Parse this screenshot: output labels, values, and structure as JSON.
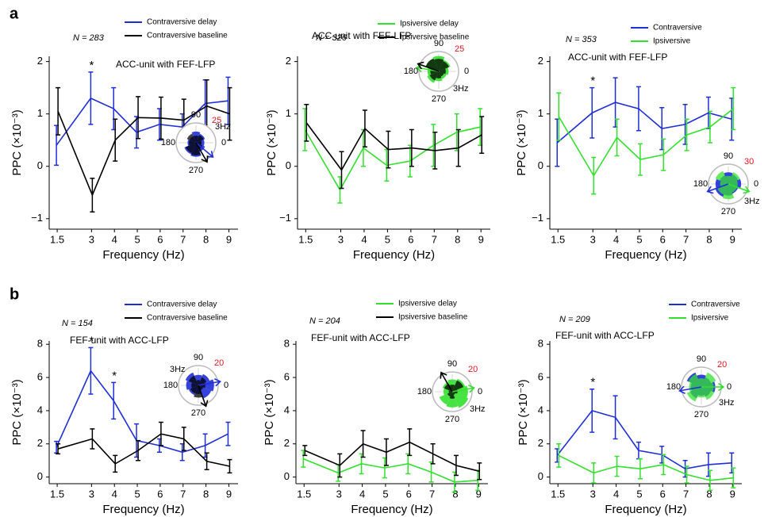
{
  "chart_data": [
    {
      "type": "line",
      "panel_label": "a",
      "n_label": "N = 283",
      "annotation": "ACC-unit with FEF-LFP",
      "x_label": "Frequency (Hz)",
      "y_label": "PPC (×10⁻³)",
      "x": [
        1.5,
        3,
        4,
        5,
        6,
        7,
        8,
        9
      ],
      "xlim": [
        1.15,
        9.4
      ],
      "xticks": [
        1.5,
        3,
        4,
        5,
        6,
        7,
        8,
        9
      ],
      "ylim": [
        -1.2,
        2.1
      ],
      "yticks": [
        {
          "value": -1,
          "label": "−1"
        },
        0,
        1,
        2
      ],
      "series": [
        {
          "name": "Contraversive delay",
          "color": "#1f2fd8",
          "values": [
            0.4,
            1.3,
            1.1,
            0.65,
            0.8,
            0.75,
            1.2,
            1.25
          ],
          "errors": [
            0.38,
            0.5,
            0.4,
            0.3,
            0.3,
            0.25,
            0.45,
            0.45
          ]
        },
        {
          "name": "Contraversive baseline",
          "color": "#000000",
          "values": [
            1.05,
            -0.55,
            0.5,
            0.93,
            0.92,
            0.88,
            1.15,
            1.0
          ],
          "errors": [
            0.45,
            0.32,
            0.4,
            0.4,
            0.4,
            0.4,
            0.5,
            0.5
          ]
        }
      ],
      "significance": [
        {
          "x": 3,
          "label": "*"
        }
      ],
      "rose": {
        "radius_label": 25,
        "angle_ticks": [
          90,
          180,
          270,
          0
        ],
        "freq_label": "3Hz",
        "series": [
          {
            "color": "#1f2fd8",
            "values": [
              12,
              14,
              16,
              10,
              12,
              18,
              20,
              14
            ],
            "arrow_angle": 320
          },
          {
            "color": "#000000",
            "values": [
              8,
              12,
              10,
              14,
              10,
              16,
              18,
              10
            ],
            "arrow_angle": 300
          }
        ]
      }
    },
    {
      "type": "line",
      "n_label": "N = 326",
      "annotation": "ACC-unit with FEF-LFP",
      "x_label": "Frequency (Hz)",
      "y_label": "PPC (×10⁻³)",
      "x": [
        1.5,
        3,
        4,
        5,
        6,
        7,
        8,
        9
      ],
      "xlim": [
        1.15,
        9.4
      ],
      "xticks": [
        1.5,
        3,
        4,
        5,
        6,
        7,
        8,
        9
      ],
      "ylim": [
        -1.2,
        2.1
      ],
      "yticks": [
        {
          "value": -1,
          "label": "−1"
        },
        0,
        1,
        2
      ],
      "series": [
        {
          "name": "Ipsiversive delay",
          "color": "#33e02e",
          "values": [
            0.7,
            -0.45,
            0.35,
            0.02,
            0.1,
            0.4,
            0.65,
            0.75
          ],
          "errors": [
            0.4,
            0.25,
            0.35,
            0.3,
            0.3,
            0.4,
            0.35,
            0.35
          ]
        },
        {
          "name": "Ipsiversive baseline",
          "color": "#000000",
          "values": [
            0.83,
            -0.07,
            0.72,
            0.32,
            0.35,
            0.3,
            0.35,
            0.6
          ],
          "errors": [
            0.35,
            0.35,
            0.35,
            0.35,
            0.35,
            0.35,
            0.35,
            0.35
          ]
        }
      ],
      "significance": [],
      "rose": {
        "radius_label": 25,
        "angle_ticks": [
          90,
          180,
          270,
          0
        ],
        "freq_label": "3Hz",
        "series": [
          {
            "color": "#33e02e",
            "values": [
              14,
              18,
              22,
              20,
              16,
              18,
              14,
              12
            ],
            "arrow_angle": 170
          },
          {
            "color": "#000000",
            "values": [
              10,
              16,
              18,
              20,
              12,
              14,
              10,
              8
            ],
            "arrow_angle": 160
          }
        ]
      }
    },
    {
      "type": "line",
      "n_label": "N = 353",
      "annotation": "ACC-unit with FEF-LFP",
      "x_label": "Frequency (Hz)",
      "y_label": "PPC (×10⁻³)",
      "x": [
        1.5,
        3,
        4,
        5,
        6,
        7,
        8,
        9
      ],
      "xlim": [
        1.15,
        9.4
      ],
      "xticks": [
        1.5,
        3,
        4,
        5,
        6,
        7,
        8,
        9
      ],
      "ylim": [
        -1.2,
        2.1
      ],
      "yticks": [
        {
          "value": -1,
          "label": "−1"
        },
        0,
        1,
        2
      ],
      "series": [
        {
          "name": "Contraversive",
          "color": "#1f2fd8",
          "values": [
            0.45,
            1.02,
            1.22,
            1.1,
            0.72,
            0.8,
            1.02,
            0.9
          ],
          "errors": [
            0.45,
            0.48,
            0.47,
            0.42,
            0.4,
            0.38,
            0.3,
            0.4
          ]
        },
        {
          "name": "Ipsiversive",
          "color": "#33e02e",
          "values": [
            0.95,
            -0.18,
            0.55,
            0.13,
            0.22,
            0.6,
            0.75,
            1.1
          ],
          "errors": [
            0.45,
            0.35,
            0.35,
            0.3,
            0.3,
            0.3,
            0.3,
            0.4
          ]
        }
      ],
      "significance": [
        {
          "x": 3,
          "label": "*"
        }
      ],
      "rose": {
        "radius_label": 30,
        "angle_ticks": [
          90,
          180,
          270,
          0
        ],
        "freq_label": "3Hz",
        "series": [
          {
            "color": "#1f2fd8",
            "values": [
              22,
              18,
              20,
              16,
              22,
              24,
              20,
              18
            ],
            "arrow_angle": 200
          },
          {
            "color": "#33e02e",
            "values": [
              16,
              22,
              14,
              24,
              14,
              20,
              26,
              16
            ],
            "arrow_angle": 340
          }
        ]
      }
    },
    {
      "type": "line",
      "panel_label": "b",
      "n_label": "N = 154",
      "annotation": "FEF-unit with ACC-LFP",
      "x_label": "Frequency (Hz)",
      "y_label": "PPC (×10⁻³)",
      "x": [
        1.5,
        3,
        4,
        5,
        6,
        7,
        8,
        9
      ],
      "xlim": [
        1.15,
        9.4
      ],
      "xticks": [
        1.5,
        3,
        4,
        5,
        6,
        7,
        8,
        9
      ],
      "ylim": [
        -0.4,
        8.2
      ],
      "yticks": [
        0,
        2,
        4,
        6,
        8
      ],
      "series": [
        {
          "name": "Contraversive delay",
          "color": "#1f2fd8",
          "values": [
            1.8,
            6.4,
            4.6,
            2.2,
            1.9,
            1.5,
            1.9,
            2.6
          ],
          "errors": [
            0.35,
            1.4,
            1.1,
            1.0,
            0.4,
            0.5,
            0.7,
            0.7
          ]
        },
        {
          "name": "Contraversive baseline",
          "color": "#000000",
          "values": [
            1.7,
            2.3,
            0.8,
            1.6,
            2.6,
            2.3,
            0.95,
            0.65
          ],
          "errors": [
            0.3,
            0.6,
            0.5,
            0.6,
            0.7,
            0.7,
            0.5,
            0.4
          ]
        }
      ],
      "significance": [
        {
          "x": 3,
          "label": "*"
        },
        {
          "x": 4,
          "label": "*"
        }
      ],
      "rose": {
        "radius_label": 20,
        "angle_ticks": [
          90,
          180,
          270,
          0
        ],
        "freq_label": "3Hz",
        "series": [
          {
            "color": "#1f2fd8",
            "values": [
              18,
              14,
              12,
              16,
              14,
              12,
              10,
              16
            ],
            "arrow_angle": 10
          },
          {
            "color": "#000000",
            "values": [
              8,
              10,
              6,
              12,
              8,
              10,
              14,
              6
            ],
            "arrow_angle": 290
          }
        ]
      }
    },
    {
      "type": "line",
      "n_label": "N = 204",
      "annotation": "FEF-unit with ACC-LFP",
      "x_label": "Frequency (Hz)",
      "y_label": "PPC (×10⁻³)",
      "x": [
        1.5,
        3,
        4,
        5,
        6,
        7,
        8,
        9
      ],
      "xlim": [
        1.15,
        9.4
      ],
      "xticks": [
        1.5,
        3,
        4,
        5,
        6,
        7,
        8,
        9
      ],
      "ylim": [
        -0.4,
        8.2
      ],
      "yticks": [
        0,
        2,
        4,
        6,
        8
      ],
      "series": [
        {
          "name": "Ipsiversive delay",
          "color": "#33e02e",
          "values": [
            1.1,
            0.25,
            0.8,
            0.55,
            0.8,
            0.3,
            -0.3,
            -0.2
          ],
          "errors": [
            0.5,
            0.5,
            0.6,
            0.6,
            0.6,
            0.6,
            0.6,
            0.6
          ]
        },
        {
          "name": "Ipsiversive baseline",
          "color": "#000000",
          "values": [
            1.6,
            0.7,
            2.0,
            1.5,
            2.1,
            1.4,
            0.7,
            0.35
          ],
          "errors": [
            0.3,
            0.7,
            0.8,
            0.8,
            0.8,
            0.6,
            0.6,
            0.5
          ]
        }
      ],
      "significance": [],
      "rose": {
        "radius_label": 20,
        "angle_ticks": [
          90,
          180,
          270,
          0
        ],
        "freq_label": "3Hz",
        "series": [
          {
            "color": "#33e02e",
            "values": [
              18,
              16,
              14,
              12,
              10,
              16,
              18,
              20
            ],
            "arrow_angle": 10
          },
          {
            "color": "#000000",
            "values": [
              6,
              14,
              8,
              10,
              4,
              6,
              8,
              4
            ],
            "arrow_angle": 120
          }
        ]
      }
    },
    {
      "type": "line",
      "n_label": "N = 209",
      "annotation": "FEF-unit with ACC-LFP",
      "x_label": "Frequency (Hz)",
      "y_label": "PPC (×10⁻³)",
      "x": [
        1.5,
        3,
        4,
        5,
        6,
        7,
        8,
        9
      ],
      "xlim": [
        1.15,
        9.4
      ],
      "xticks": [
        1.5,
        3,
        4,
        5,
        6,
        7,
        8,
        9
      ],
      "ylim": [
        -0.4,
        8.2
      ],
      "yticks": [
        0,
        2,
        4,
        6,
        8
      ],
      "series": [
        {
          "name": "Contraversive",
          "color": "#1f2fd8",
          "values": [
            1.3,
            4.0,
            3.6,
            1.6,
            1.35,
            0.5,
            0.75,
            0.85
          ],
          "errors": [
            0.4,
            1.3,
            1.3,
            0.5,
            0.5,
            0.5,
            0.7,
            0.6
          ]
        },
        {
          "name": "Ipsiversive",
          "color": "#33e02e",
          "values": [
            1.3,
            0.25,
            0.65,
            0.5,
            0.75,
            0.15,
            -0.2,
            -0.05
          ],
          "errors": [
            0.7,
            0.6,
            0.6,
            0.6,
            0.6,
            0.5,
            0.6,
            0.6
          ]
        }
      ],
      "significance": [
        {
          "x": 3,
          "label": "*"
        }
      ],
      "rose": {
        "radius_label": 20,
        "angle_ticks": [
          90,
          180,
          270,
          0
        ],
        "freq_label": "3Hz",
        "series": [
          {
            "color": "#1f2fd8",
            "values": [
              16,
              12,
              14,
              18,
              12,
              14,
              10,
              12
            ],
            "arrow_angle": 190
          },
          {
            "color": "#33e02e",
            "values": [
              14,
              18,
              10,
              16,
              14,
              18,
              12,
              16
            ],
            "arrow_angle": 0
          }
        ]
      }
    }
  ]
}
